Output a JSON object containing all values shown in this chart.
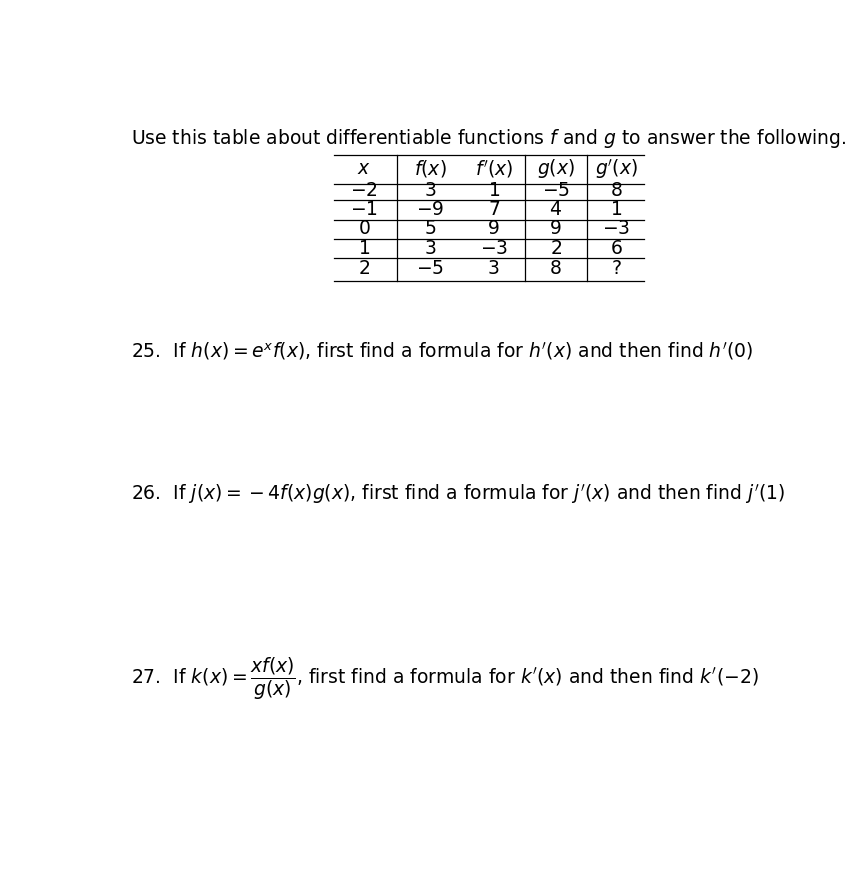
{
  "title": "Use this table about differentiable functions $f$ and $g$ to answer the following.",
  "col_headers": [
    "$x$",
    "$f(x)$",
    "$f'(x)$",
    "$g(x)$",
    "$g'(x)$"
  ],
  "table_rows": [
    [
      "$-2$",
      "$3$",
      "$1$",
      "$-5$",
      "$8$"
    ],
    [
      "$-1$",
      "$-9$",
      "$7$",
      "$4$",
      "$1$"
    ],
    [
      "$0$",
      "$5$",
      "$9$",
      "$9$",
      "$-3$"
    ],
    [
      "$1$",
      "$3$",
      "$-3$",
      "$2$",
      "$6$"
    ],
    [
      "$2$",
      "$-5$",
      "$3$",
      "$8$",
      "$?$"
    ]
  ],
  "q25": "25.  If $h(x) = e^{x}f(x)$, first find a formula for $h'(x)$ and then find $h'(0)$",
  "q26": "26.  If $j(x) = -4f(x)g(x)$, first find a formula for $j'(x)$ and then find $j'(1)$",
  "q27": "27.  If $k(x) = \\dfrac{xf(x)}{g(x)}$, first find a formula for $k'(x)$ and then find $k'(-2)$",
  "bg_color": "#ffffff",
  "text_color": "#000000",
  "font_size": 13.5,
  "title_font_size": 13.5,
  "table_font_size": 13.5,
  "figwidth": 8.68,
  "figheight": 8.75,
  "dpi": 100
}
